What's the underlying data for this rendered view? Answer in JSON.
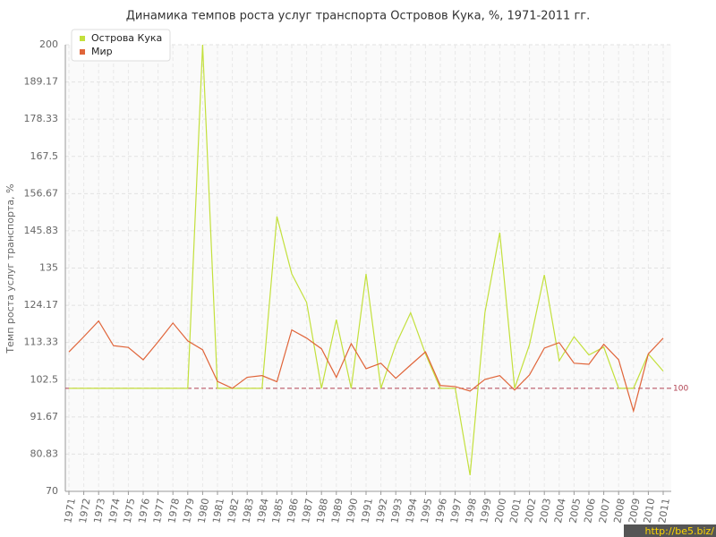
{
  "chart_data": {
    "type": "line",
    "title": "Динамика темпов роста услуг транспорта Островов Кука, %, 1971-2011 гг.",
    "y_label": "Темп роста услуг транспорта, %",
    "categories": [
      "1971",
      "1972",
      "1973",
      "1974",
      "1975",
      "1976",
      "1977",
      "1978",
      "1979",
      "1980",
      "1981",
      "1982",
      "1983",
      "1984",
      "1985",
      "1986",
      "1987",
      "1988",
      "1989",
      "1990",
      "1991",
      "1992",
      "1993",
      "1994",
      "1995",
      "1996",
      "1997",
      "1998",
      "1999",
      "2000",
      "2001",
      "2002",
      "2003",
      "2004",
      "2005",
      "2006",
      "2007",
      "2008",
      "2009",
      "2010",
      "2011"
    ],
    "series": [
      {
        "name": "Острова Кука",
        "color": "#c3e03c",
        "values": [
          100,
          100,
          100,
          100,
          100,
          100,
          100,
          100,
          100,
          200,
          100,
          100,
          100,
          100,
          150,
          133.3,
          125,
          100,
          120,
          100,
          133.3,
          100,
          112.7,
          122,
          110,
          100,
          100,
          74.7,
          122,
          145.3,
          100,
          112.7,
          133,
          108,
          115,
          109.7,
          112,
          100,
          100,
          110,
          105
        ]
      },
      {
        "name": "Мир",
        "color": "#e0653a",
        "values": [
          110.6,
          115,
          119.6,
          112.4,
          111.9,
          108.3,
          113.5,
          119,
          113.8,
          111.2,
          102,
          100,
          103.2,
          103.7,
          101.9,
          117,
          114.6,
          111.5,
          103.2,
          113,
          105.7,
          107.3,
          102.9,
          106.8,
          110.6,
          100.8,
          100.5,
          99.2,
          102.6,
          103.7,
          99.5,
          103.9,
          111.7,
          113.3,
          107.3,
          107,
          112.8,
          108.3,
          93.4,
          110,
          114.6
        ]
      }
    ],
    "ylim": [
      70,
      200
    ],
    "yticks": [
      70,
      80.83,
      91.67,
      102.5,
      113.33,
      124.17,
      135,
      145.83,
      156.67,
      167.5,
      178.33,
      189.17,
      200
    ],
    "grid": true,
    "reference_line": 100,
    "reference_color": "#b04050",
    "legend": "top-left",
    "watermark": "http://be5.biz/"
  }
}
